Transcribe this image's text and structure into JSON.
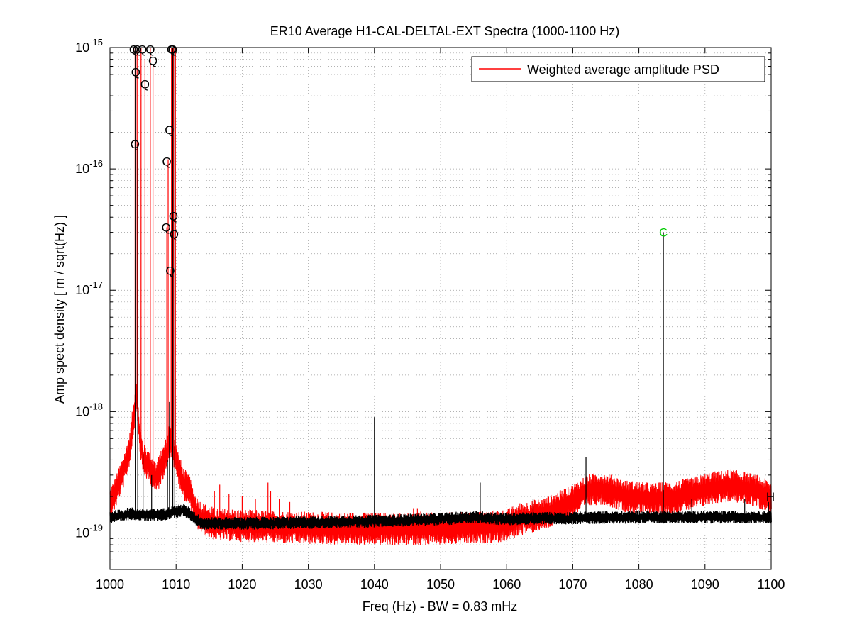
{
  "chart_data": {
    "type": "line",
    "title": "ER10 Average H1-CAL-DELTAL-EXT Spectra (1000-1100 Hz)",
    "xlabel": "Freq (Hz) - BW = 0.83 mHz",
    "ylabel": "Amp spect density [ m / sqrt(Hz) ]",
    "xlim": [
      1000,
      1100
    ],
    "ylim": [
      5e-20,
      1e-15
    ],
    "y_scale": "log",
    "grid": true,
    "legend_position": "top-right",
    "x_ticks": [
      "1000",
      "1010",
      "1020",
      "1030",
      "1040",
      "1050",
      "1060",
      "1070",
      "1080",
      "1090",
      "1100"
    ],
    "y_ticks": [
      {
        "base": "10",
        "exp": "-19",
        "value": 1e-19
      },
      {
        "base": "10",
        "exp": "-18",
        "value": 1e-18
      },
      {
        "base": "10",
        "exp": "-17",
        "value": 1e-17
      },
      {
        "base": "10",
        "exp": "-16",
        "value": 1e-16
      },
      {
        "base": "10",
        "exp": "-15",
        "value": 1e-15
      }
    ],
    "series": [
      {
        "name": "Weighted average amplitude PSD",
        "color": "#ff0000",
        "baseline": [
          [
            1000,
            1.7e-19
          ],
          [
            1001,
            2.3e-19
          ],
          [
            1002,
            3.2e-19
          ],
          [
            1003,
            5e-19
          ],
          [
            1003.5,
            8.5e-19
          ],
          [
            1004,
            1.4e-18
          ],
          [
            1004.5,
            6e-19
          ],
          [
            1005,
            4e-19
          ],
          [
            1006,
            3.5e-19
          ],
          [
            1007,
            2.8e-19
          ],
          [
            1008,
            3.8e-19
          ],
          [
            1008.5,
            4.5e-19
          ],
          [
            1009,
            6e-19
          ],
          [
            1010,
            4e-19
          ],
          [
            1011,
            2.6e-19
          ],
          [
            1012,
            2.2e-19
          ],
          [
            1013,
            1.5e-19
          ],
          [
            1014,
            1.3e-19
          ],
          [
            1016,
            1.18e-19
          ],
          [
            1020,
            1.15e-19
          ],
          [
            1025,
            1.12e-19
          ],
          [
            1030,
            1.1e-19
          ],
          [
            1040,
            1.08e-19
          ],
          [
            1050,
            1.08e-19
          ],
          [
            1055,
            1.1e-19
          ],
          [
            1060,
            1.15e-19
          ],
          [
            1062,
            1.3e-19
          ],
          [
            1066,
            1.45e-19
          ],
          [
            1070,
            1.85e-19
          ],
          [
            1072,
            2.2e-19
          ],
          [
            1074,
            2.35e-19
          ],
          [
            1076,
            2.2e-19
          ],
          [
            1078,
            2e-19
          ],
          [
            1082,
            1.9e-19
          ],
          [
            1085,
            1.95e-19
          ],
          [
            1088,
            2.1e-19
          ],
          [
            1091,
            2.35e-19
          ],
          [
            1094,
            2.45e-19
          ],
          [
            1096,
            2.35e-19
          ],
          [
            1098,
            2.2e-19
          ],
          [
            1100,
            1.95e-19
          ]
        ],
        "lines": [
          [
            1003.8,
            1e-15
          ],
          [
            1004.1,
            1e-15
          ],
          [
            1004.7,
            1e-15
          ],
          [
            1005.3,
            8e-16
          ],
          [
            1006.1,
            1e-15
          ],
          [
            1006.5,
            7e-16
          ],
          [
            1009.3,
            1e-15
          ],
          [
            1009.6,
            1e-15
          ],
          [
            1009.9,
            1e-15
          ],
          [
            1008.8,
            1.2e-16
          ],
          [
            1009.4,
            4e-17
          ],
          [
            1009.1,
            1.5e-17
          ],
          [
            1008.6,
            3.3e-17
          ],
          [
            1015.8,
            2.2e-19
          ],
          [
            1016.6,
            2.5e-19
          ],
          [
            1018,
            2.1e-19
          ],
          [
            1020,
            2e-19
          ],
          [
            1022,
            1.9e-19
          ],
          [
            1023.9,
            2.6e-19
          ],
          [
            1024.3,
            2.2e-19
          ],
          [
            1025.6,
            1.9e-19
          ],
          [
            1027.2,
            1.8e-19
          ],
          [
            1045.9,
            1.6e-19
          ],
          [
            1046.5,
            1.6e-19
          ],
          [
            1047,
            1.5e-19
          ]
        ]
      },
      {
        "name": "",
        "color": "#000000",
        "baseline": [
          [
            1000,
            1.35e-19
          ],
          [
            1002,
            1.4e-19
          ],
          [
            1003,
            1.45e-19
          ],
          [
            1005,
            1.4e-19
          ],
          [
            1008,
            1.42e-19
          ],
          [
            1010,
            1.5e-19
          ],
          [
            1011,
            1.55e-19
          ],
          [
            1012,
            1.45e-19
          ],
          [
            1013,
            1.3e-19
          ],
          [
            1014,
            1.2e-19
          ],
          [
            1020,
            1.2e-19
          ],
          [
            1030,
            1.22e-19
          ],
          [
            1040,
            1.25e-19
          ],
          [
            1050,
            1.3e-19
          ],
          [
            1055,
            1.35e-19
          ],
          [
            1060,
            1.3e-19
          ],
          [
            1065,
            1.32e-19
          ],
          [
            1070,
            1.33e-19
          ],
          [
            1080,
            1.35e-19
          ],
          [
            1090,
            1.35e-19
          ],
          [
            1100,
            1.35e-19
          ]
        ],
        "lines": [
          [
            1003.9,
            1e-15
          ],
          [
            1004.2,
            1.6e-16
          ],
          [
            1005.0,
            4.5e-19
          ],
          [
            1006.3,
            3e-19
          ],
          [
            1008.7,
            4e-19
          ],
          [
            1009.0,
            1.2e-18
          ],
          [
            1009.5,
            1e-15
          ],
          [
            1009.8,
            1e-15
          ],
          [
            1040,
            9e-19
          ],
          [
            1056,
            2.6e-19
          ],
          [
            1064,
            1.9e-19
          ],
          [
            1072,
            4.2e-19
          ],
          [
            1083.7,
            3e-17
          ],
          [
            1088,
            1.9e-19
          ],
          [
            1096,
            1.9e-19
          ],
          [
            1099.6,
            1.8e-19
          ]
        ]
      }
    ],
    "markers": [
      {
        "label": "Q",
        "x": 1003.6,
        "y": 9.7e-16,
        "color": "#000000"
      },
      {
        "label": "Q",
        "x": 1004.1,
        "y": 9.7e-16,
        "color": "#000000"
      },
      {
        "label": "Q",
        "x": 1004.9,
        "y": 9.7e-16,
        "color": "#000000"
      },
      {
        "label": "Q",
        "x": 1006.1,
        "y": 9.7e-16,
        "color": "#000000"
      },
      {
        "label": "Q",
        "x": 1009.3,
        "y": 9.7e-16,
        "color": "#000000"
      },
      {
        "label": "Q",
        "x": 1009.5,
        "y": 9.7e-16,
        "color": "#000000"
      },
      {
        "label": "Q",
        "x": 1006.5,
        "y": 7.8e-16,
        "color": "#000000"
      },
      {
        "label": "Q",
        "x": 1003.9,
        "y": 6.3e-16,
        "color": "#000000"
      },
      {
        "label": "Q",
        "x": 1005.3,
        "y": 5e-16,
        "color": "#000000"
      },
      {
        "label": "Q",
        "x": 1009.0,
        "y": 2.1e-16,
        "color": "#000000"
      },
      {
        "label": "Q",
        "x": 1003.8,
        "y": 1.6e-16,
        "color": "#000000"
      },
      {
        "label": "Q",
        "x": 1008.6,
        "y": 1.15e-16,
        "color": "#000000"
      },
      {
        "label": "Q",
        "x": 1009.6,
        "y": 4.1e-17,
        "color": "#000000"
      },
      {
        "label": "Q",
        "x": 1008.5,
        "y": 3.3e-17,
        "color": "#000000"
      },
      {
        "label": "Q",
        "x": 1009.7,
        "y": 2.9e-17,
        "color": "#000000"
      },
      {
        "label": "Q",
        "x": 1009.1,
        "y": 1.45e-17,
        "color": "#000000"
      },
      {
        "label": "C",
        "x": 1083.7,
        "y": 3e-17,
        "color": "#00cc00"
      },
      {
        "label": "H",
        "x": 1099.9,
        "y": 2e-19,
        "color": "#000000"
      }
    ]
  }
}
